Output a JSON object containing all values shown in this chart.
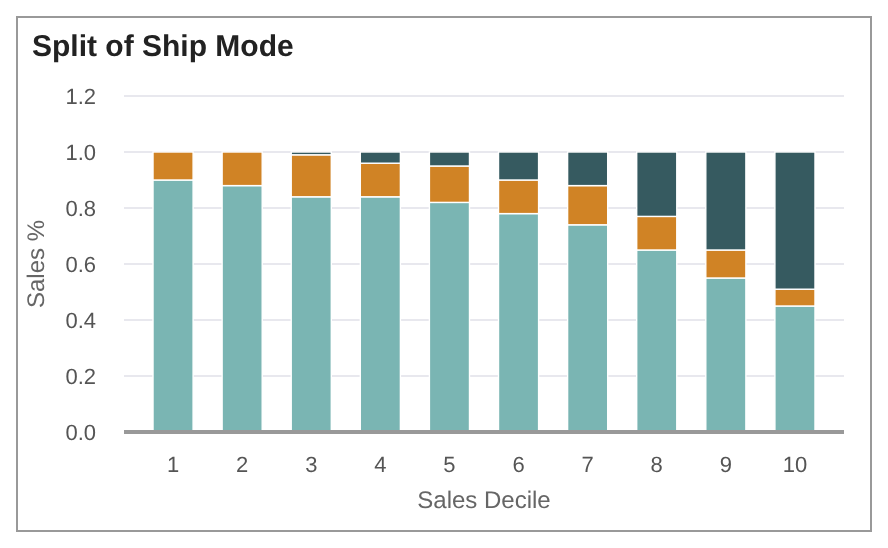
{
  "chart_data": {
    "type": "bar",
    "title": "Split of Ship Mode",
    "xlabel": "Sales Decile",
    "ylabel": "Sales %",
    "categories": [
      "1",
      "2",
      "3",
      "4",
      "5",
      "6",
      "7",
      "8",
      "9",
      "10"
    ],
    "stacked": true,
    "grid": "y",
    "ylim": [
      0,
      1.2
    ],
    "yticks": [
      {
        "value": 0,
        "label": "0.0"
      },
      {
        "value": 0.2,
        "label": "0.2"
      },
      {
        "value": 0.4,
        "label": "0.4"
      },
      {
        "value": 0.6,
        "label": "0.6"
      },
      {
        "value": 0.8,
        "label": "0.8"
      },
      {
        "value": 1,
        "label": "1.0"
      },
      {
        "value": 1.2,
        "label": "1.2"
      }
    ],
    "series": [
      {
        "color": "#7ab5b3",
        "values": [
          0.9,
          0.88,
          0.84,
          0.84,
          0.82,
          0.78,
          0.74,
          0.65,
          0.55,
          0.45
        ]
      },
      {
        "color": "#d08325",
        "values": [
          0.1,
          0.12,
          0.15,
          0.12,
          0.13,
          0.12,
          0.14,
          0.12,
          0.1,
          0.06
        ]
      },
      {
        "color": "#365a60",
        "values": [
          0,
          0,
          0.01,
          0.04,
          0.05,
          0.1,
          0.12,
          0.23,
          0.35,
          0.49
        ]
      }
    ]
  }
}
